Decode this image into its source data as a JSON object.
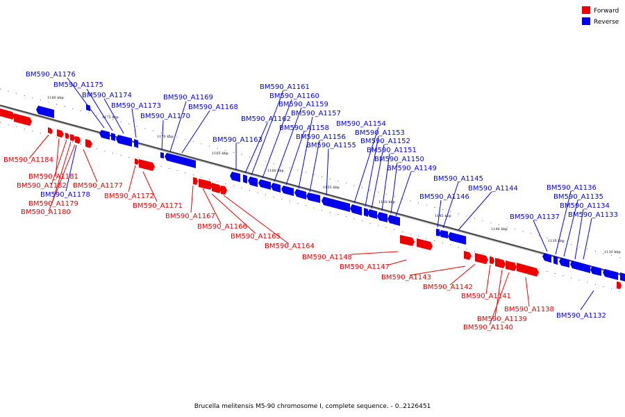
{
  "caption": "Brucella melitensis M5-90 chromosome I, complete sequence. - 0..2126451",
  "legend": {
    "forward": {
      "label": "Forward",
      "color": "#ee0000"
    },
    "reverse": {
      "label": "Reverse",
      "color": "#0000ee"
    }
  },
  "ticks": [
    "1180 kbp",
    "1175 kbp",
    "1170 kbp",
    "1165 kbp",
    "1160 kbp",
    "1155 kbp",
    "1150 kbp",
    "1145 kbp",
    "1140 kbp",
    "1135 kbp",
    "1130 kbp"
  ],
  "genes": [
    {
      "name": "BM590_A1176",
      "strand": "reverse"
    },
    {
      "name": "BM590_A1175",
      "strand": "reverse"
    },
    {
      "name": "BM590_A1174",
      "strand": "reverse"
    },
    {
      "name": "BM590_A1173",
      "strand": "reverse"
    },
    {
      "name": "BM590_A1170",
      "strand": "reverse"
    },
    {
      "name": "BM590_A1169",
      "strand": "reverse"
    },
    {
      "name": "BM590_A1168",
      "strand": "reverse"
    },
    {
      "name": "BM590_A1163",
      "strand": "reverse"
    },
    {
      "name": "BM590_A1162",
      "strand": "reverse"
    },
    {
      "name": "BM590_A1161",
      "strand": "reverse"
    },
    {
      "name": "BM590_A1160",
      "strand": "reverse"
    },
    {
      "name": "BM590_A1159",
      "strand": "reverse"
    },
    {
      "name": "BM590_A1157",
      "strand": "reverse"
    },
    {
      "name": "BM590_A1158",
      "strand": "reverse"
    },
    {
      "name": "BM590_A1156",
      "strand": "reverse"
    },
    {
      "name": "BM590_A1155",
      "strand": "reverse"
    },
    {
      "name": "BM590_A1154",
      "strand": "reverse"
    },
    {
      "name": "BM590_A1153",
      "strand": "reverse"
    },
    {
      "name": "BM590_A1152",
      "strand": "reverse"
    },
    {
      "name": "BM590_A1151",
      "strand": "reverse"
    },
    {
      "name": "BM590_A1150",
      "strand": "reverse"
    },
    {
      "name": "BM590_A1149",
      "strand": "reverse"
    },
    {
      "name": "BM590_A1145",
      "strand": "reverse"
    },
    {
      "name": "BM590_A1144",
      "strand": "reverse"
    },
    {
      "name": "BM590_A1146",
      "strand": "reverse"
    },
    {
      "name": "BM590_A1136",
      "strand": "reverse"
    },
    {
      "name": "BM590_A1135",
      "strand": "reverse"
    },
    {
      "name": "BM590_A1134",
      "strand": "reverse"
    },
    {
      "name": "BM590_A1137",
      "strand": "reverse"
    },
    {
      "name": "BM590_A1133",
      "strand": "reverse"
    },
    {
      "name": "BM590_A1132",
      "strand": "reverse"
    },
    {
      "name": "BM590_A1178",
      "strand": "reverse"
    },
    {
      "name": "BM590_A1184",
      "strand": "forward"
    },
    {
      "name": "BM590_A1181",
      "strand": "forward"
    },
    {
      "name": "BM590_A1182",
      "strand": "forward"
    },
    {
      "name": "BM590_A1177",
      "strand": "forward"
    },
    {
      "name": "BM590_A1179",
      "strand": "forward"
    },
    {
      "name": "BM590_A1180",
      "strand": "forward"
    },
    {
      "name": "BM590_A1172",
      "strand": "forward"
    },
    {
      "name": "BM590_A1171",
      "strand": "forward"
    },
    {
      "name": "BM590_A1167",
      "strand": "forward"
    },
    {
      "name": "BM590_A1166",
      "strand": "forward"
    },
    {
      "name": "BM590_A1165",
      "strand": "forward"
    },
    {
      "name": "BM590_A1164",
      "strand": "forward"
    },
    {
      "name": "BM590_A1148",
      "strand": "forward"
    },
    {
      "name": "BM590_A1147",
      "strand": "forward"
    },
    {
      "name": "BM590_A1143",
      "strand": "forward"
    },
    {
      "name": "BM590_A1142",
      "strand": "forward"
    },
    {
      "name": "BM590_A1141",
      "strand": "forward"
    },
    {
      "name": "BM590_A1138",
      "strand": "forward"
    },
    {
      "name": "BM590_A1139",
      "strand": "forward"
    },
    {
      "name": "BM590_A1140",
      "strand": "forward"
    }
  ]
}
